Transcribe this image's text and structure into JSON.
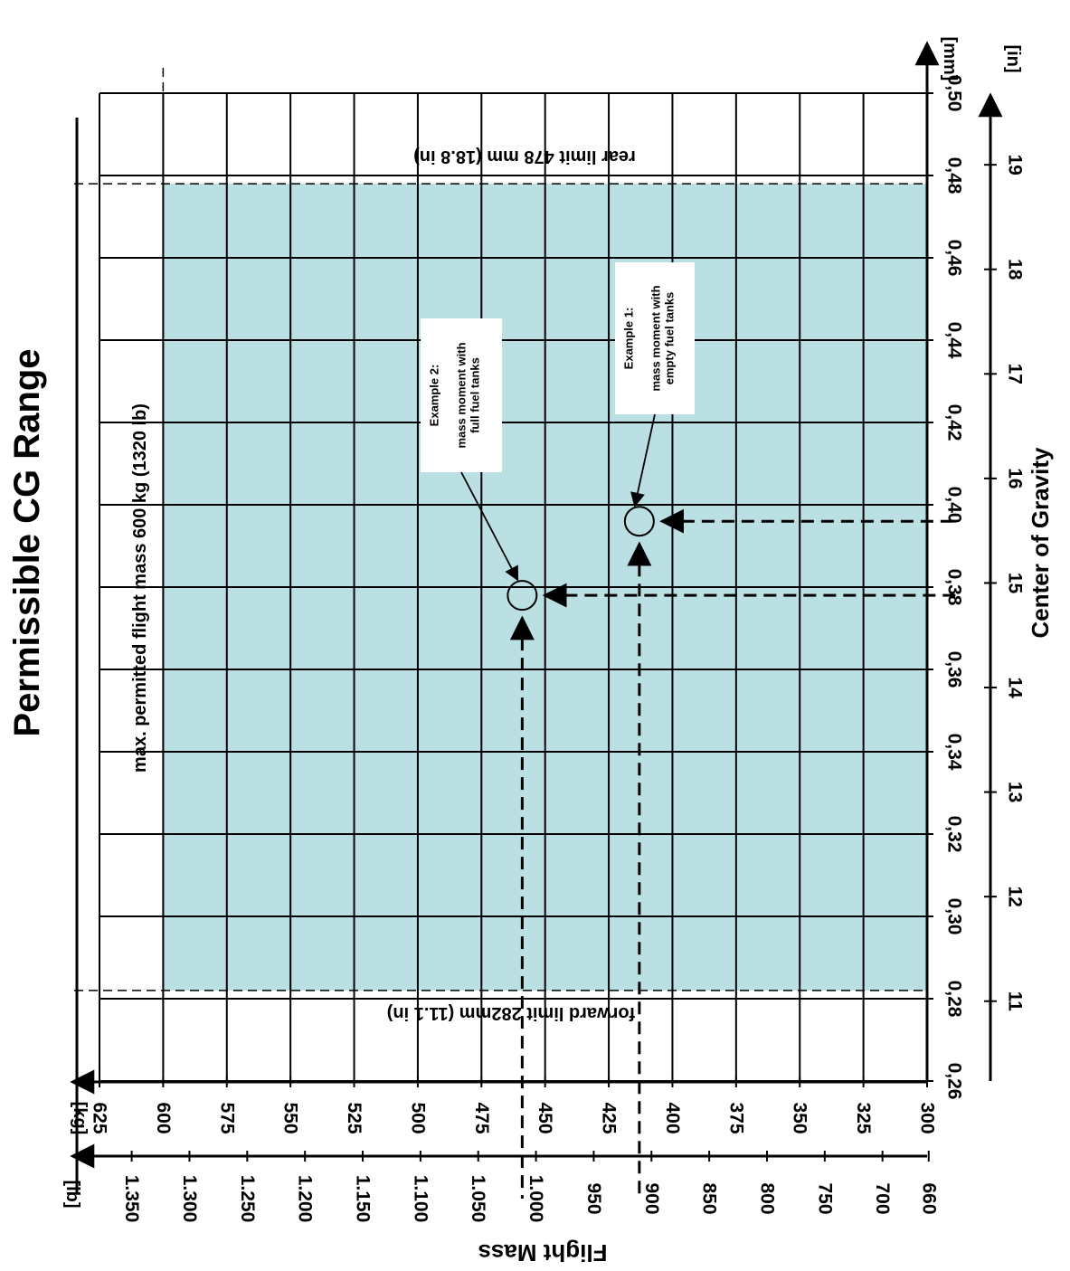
{
  "chart_data": {
    "type": "line",
    "title": "Permissible CG Range",
    "orientation": "rotated-90-clockwise",
    "x_axis": {
      "label": "Center of Gravity",
      "mm_unit": "[mm]",
      "in_unit": "[in]",
      "mm_range": [
        0.26,
        0.5
      ],
      "mm_ticks": [
        "0,26",
        "0,28",
        "0,30",
        "0,32",
        "0,34",
        "0,36",
        "0,38",
        "0,40",
        "0,42",
        "0,44",
        "0,46",
        "0,48",
        "0,50"
      ],
      "in_ticks": [
        "11",
        "12",
        "13",
        "14",
        "15",
        "16",
        "17",
        "18",
        "19"
      ]
    },
    "y_axis": {
      "label": "Flight Mass",
      "kg_unit": "[kg]",
      "lb_unit": "[lb]",
      "kg_range": [
        300,
        625
      ],
      "kg_ticks": [
        "300",
        "325",
        "350",
        "375",
        "400",
        "425",
        "450",
        "475",
        "500",
        "525",
        "550",
        "575",
        "600",
        "625"
      ],
      "lb_ticks": [
        "660",
        "700",
        "750",
        "800",
        "850",
        "900",
        "950",
        "1.000",
        "1.050",
        "1.100",
        "1.150",
        "1.200",
        "1.250",
        "1.300",
        "1.350"
      ]
    },
    "envelope": {
      "color": "#bbe0e3",
      "cg_min": 0.282,
      "cg_max": 0.478,
      "mass_min": 300,
      "mass_max": 600
    },
    "limit_labels": {
      "forward": "forward limit 282mm (11.1 in)",
      "rear": "rear limit 478 mm (18.8 in)",
      "max_mass": "max. permitted flight mass 600 kg (1320 lb)"
    },
    "examples": [
      {
        "title": "Example 1:",
        "lines": [
          "mass moment with",
          "empty fuel tanks"
        ],
        "cg": 0.396,
        "mass": 413
      },
      {
        "title": "Example 2:",
        "lines": [
          "mass moment with",
          "full fuel tanks"
        ],
        "cg": 0.378,
        "mass": 459
      }
    ],
    "grid": true
  }
}
